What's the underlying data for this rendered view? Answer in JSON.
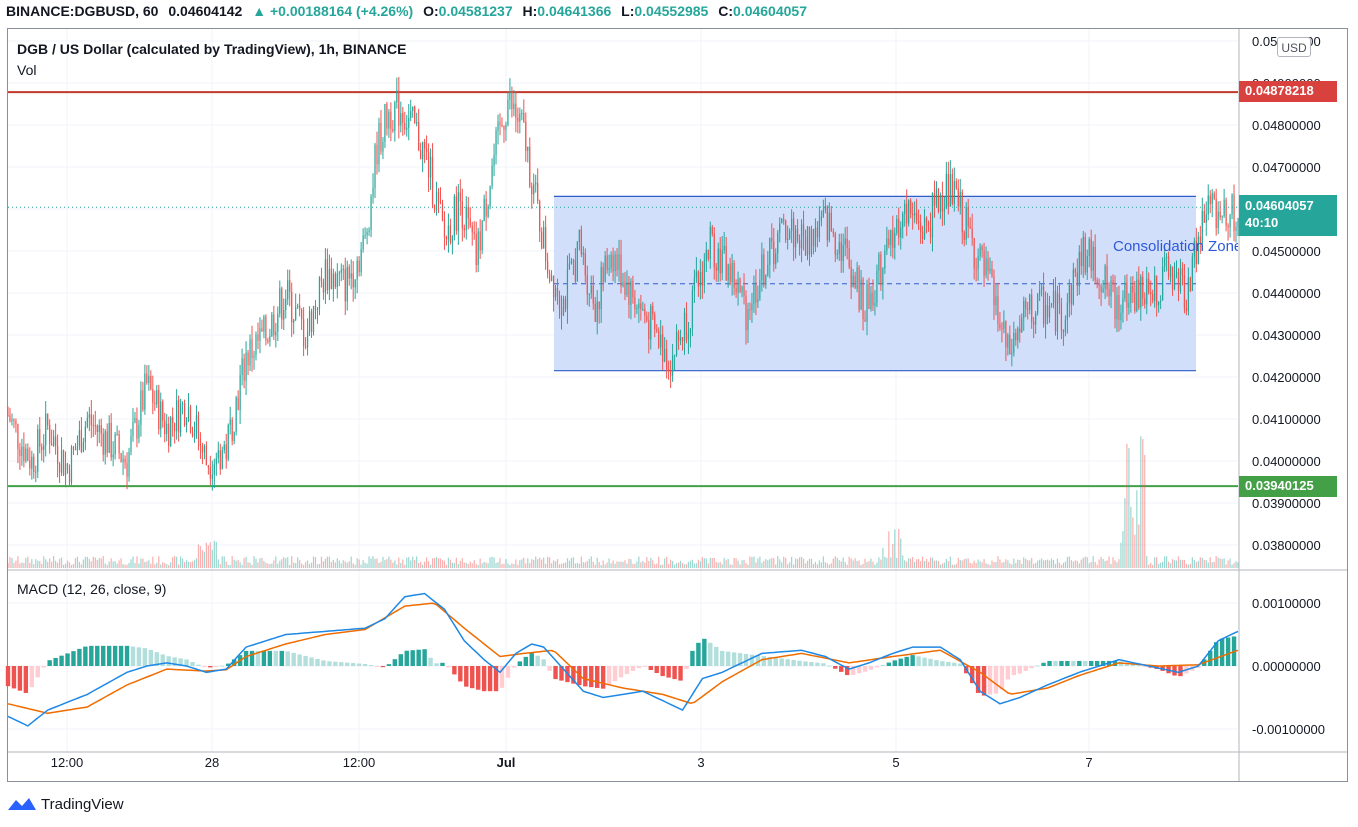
{
  "header": {
    "symbol": "BINANCE:DGBUSD, 60",
    "price": "0.04604142",
    "change": "▲ +0.00188164 (+4.26%)",
    "o_label": "O:",
    "o_value": "0.04581237",
    "h_label": "H:",
    "h_value": "0.04641366",
    "l_label": "L:",
    "l_value": "0.04552985",
    "c_label": "C:",
    "c_value": "0.04604057"
  },
  "legend": {
    "title": "DGB / US Dollar (calculated by TradingView), 1h, BINANCE",
    "vol": "Vol",
    "macd": "MACD (12, 26, close, 9)"
  },
  "currency_button": "USD",
  "price_tags": {
    "resistance": "0.04878218",
    "last_price": "0.04604057",
    "countdown": "40:10",
    "support": "0.03940125"
  },
  "annotation": "Consolidation Zone",
  "footer": {
    "brand": "TradingView"
  },
  "colors": {
    "up": "#26a69a",
    "down": "#ef5350",
    "resistance": "#c0392b",
    "support": "#43a047",
    "zone_fill": "#cddcf9",
    "zone_border": "#2e5fc7",
    "macd_line": "#1e88e5",
    "signal_line": "#ef6c00"
  },
  "chart_data": [
    {
      "type": "candlestick",
      "title": "DGB / US Dollar (calculated by TradingView), 1h, BINANCE",
      "x_ticks": [
        "12:00",
        "28",
        "12:00",
        "Jul",
        "3",
        "5",
        "7"
      ],
      "y_ticks": [
        "0.05000000",
        "0.04900000",
        "0.04800000",
        "0.04700000",
        "0.04600000",
        "0.04500000",
        "0.04400000",
        "0.04300000",
        "0.04200000",
        "0.04100000",
        "0.04000000",
        "0.03900000",
        "0.03800000"
      ],
      "ylim": [
        0.0375,
        0.0503
      ],
      "grid": true,
      "horizontal_lines": [
        {
          "name": "resistance",
          "value": 0.04878218
        },
        {
          "name": "support",
          "value": 0.03940125
        },
        {
          "name": "last_price",
          "value": 0.04604057
        }
      ],
      "rectangle": {
        "label": "Consolidation Zone",
        "low": 0.04215,
        "high": 0.0463,
        "mid": 0.04422,
        "from_x": "Jul 1 ~02:00",
        "to_x": "Jul 8"
      },
      "price_path": [
        [
          0,
          0.0411
        ],
        [
          6,
          0.0405
        ],
        [
          12,
          0.04
        ],
        [
          20,
          0.0408
        ],
        [
          30,
          0.0398
        ],
        [
          40,
          0.041
        ],
        [
          50,
          0.0405
        ],
        [
          60,
          0.04
        ],
        [
          70,
          0.0418
        ],
        [
          80,
          0.0408
        ],
        [
          90,
          0.0414
        ],
        [
          100,
          0.04
        ],
        [
          110,
          0.0403
        ],
        [
          120,
          0.0425
        ],
        [
          130,
          0.043
        ],
        [
          140,
          0.044
        ],
        [
          150,
          0.043
        ],
        [
          160,
          0.0445
        ],
        [
          170,
          0.0442
        ],
        [
          180,
          0.0452
        ],
        [
          186,
          0.0475
        ],
        [
          192,
          0.0483
        ],
        [
          198,
          0.0484
        ],
        [
          206,
          0.0478
        ],
        [
          212,
          0.047
        ],
        [
          220,
          0.0453
        ],
        [
          228,
          0.0462
        ],
        [
          236,
          0.0448
        ],
        [
          244,
          0.047
        ],
        [
          252,
          0.0486
        ],
        [
          260,
          0.0478
        ],
        [
          266,
          0.0462
        ],
        [
          272,
          0.0447
        ],
        [
          280,
          0.0438
        ],
        [
          288,
          0.0451
        ],
        [
          296,
          0.0437
        ],
        [
          304,
          0.045
        ],
        [
          314,
          0.044
        ],
        [
          324,
          0.0432
        ],
        [
          334,
          0.0424
        ],
        [
          344,
          0.0436
        ],
        [
          354,
          0.0452
        ],
        [
          364,
          0.0445
        ],
        [
          372,
          0.0436
        ],
        [
          382,
          0.0447
        ],
        [
          392,
          0.0456
        ],
        [
          402,
          0.0452
        ],
        [
          412,
          0.0457
        ],
        [
          422,
          0.045
        ],
        [
          432,
          0.0436
        ],
        [
          442,
          0.0448
        ],
        [
          452,
          0.046
        ],
        [
          462,
          0.0455
        ],
        [
          472,
          0.0465
        ],
        [
          478,
          0.0462
        ],
        [
          486,
          0.0452
        ],
        [
          496,
          0.044
        ],
        [
          504,
          0.0425
        ],
        [
          512,
          0.0434
        ],
        [
          522,
          0.0437
        ],
        [
          532,
          0.0435
        ],
        [
          542,
          0.045
        ],
        [
          550,
          0.0445
        ],
        [
          558,
          0.0437
        ],
        [
          566,
          0.044
        ],
        [
          576,
          0.044
        ],
        [
          586,
          0.0445
        ],
        [
          594,
          0.044
        ],
        [
          604,
          0.046
        ],
        [
          612,
          0.046
        ],
        [
          620,
          0.0458
        ]
      ],
      "volume_spikes": [
        {
          "x": "Jun 27 ~00:00",
          "relative": 0.45
        },
        {
          "x": "Jul 5 ~03:00",
          "relative": 0.42
        },
        {
          "x": "Jul 7 ~05:00",
          "relative": 1.0
        }
      ]
    },
    {
      "type": "line",
      "title": "MACD (12, 26, close, 9)",
      "y_ticks": [
        "0.00100000",
        "0.00000000",
        "-0.00100000"
      ],
      "ylim": [
        -0.00128,
        0.00128
      ],
      "series": [
        {
          "name": "MACD",
          "values": [
            [
              0,
              -0.0008
            ],
            [
              10,
              -0.00095
            ],
            [
              20,
              -0.0007
            ],
            [
              40,
              -0.00045
            ],
            [
              60,
              -0.0001
            ],
            [
              70,
              0.0
            ],
            [
              80,
              5e-05
            ],
            [
              90,
              0.0
            ],
            [
              100,
              -0.0001
            ],
            [
              110,
              -5e-05
            ],
            [
              120,
              0.0003
            ],
            [
              140,
              0.0005
            ],
            [
              160,
              0.00055
            ],
            [
              180,
              0.0006
            ],
            [
              190,
              0.00075
            ],
            [
              200,
              0.0011
            ],
            [
              210,
              0.00115
            ],
            [
              220,
              0.0009
            ],
            [
              230,
              0.0004
            ],
            [
              240,
              0.0001
            ],
            [
              248,
              -0.0001
            ],
            [
              256,
              0.0002
            ],
            [
              264,
              0.00035
            ],
            [
              270,
              0.0003
            ],
            [
              280,
              -5e-05
            ],
            [
              290,
              -0.0004
            ],
            [
              300,
              -0.0005
            ],
            [
              310,
              -0.00045
            ],
            [
              320,
              -0.0004
            ],
            [
              330,
              -0.00055
            ],
            [
              340,
              -0.0007
            ],
            [
              350,
              -0.0002
            ],
            [
              360,
              -0.0001
            ],
            [
              380,
              0.0002
            ],
            [
              400,
              0.00025
            ],
            [
              412,
              0.00015
            ],
            [
              424,
              -5e-05
            ],
            [
              434,
              5e-05
            ],
            [
              446,
              0.0002
            ],
            [
              456,
              0.0003
            ],
            [
              470,
              0.0003
            ],
            [
              480,
              0.0001
            ],
            [
              490,
              -0.0004
            ],
            [
              500,
              -0.0006
            ],
            [
              510,
              -0.0005
            ],
            [
              524,
              -0.0003
            ],
            [
              540,
              -0.0001
            ],
            [
              560,
              0.0001
            ],
            [
              575,
              0.0
            ],
            [
              590,
              -0.0001
            ],
            [
              600,
              0.0
            ],
            [
              610,
              0.0004
            ],
            [
              620,
              0.00055
            ]
          ]
        },
        {
          "name": "Signal",
          "values": [
            [
              0,
              -0.0006
            ],
            [
              20,
              -0.00075
            ],
            [
              40,
              -0.00065
            ],
            [
              60,
              -0.0003
            ],
            [
              80,
              -5e-05
            ],
            [
              100,
              -8e-05
            ],
            [
              110,
              -6e-05
            ],
            [
              120,
              0.00015
            ],
            [
              140,
              0.00035
            ],
            [
              160,
              0.0005
            ],
            [
              180,
              0.00058
            ],
            [
              200,
              0.00095
            ],
            [
              215,
              0.001
            ],
            [
              230,
              0.0006
            ],
            [
              248,
              0.00015
            ],
            [
              260,
              0.0002
            ],
            [
              275,
              0.00025
            ],
            [
              290,
              -0.0002
            ],
            [
              310,
              -0.00035
            ],
            [
              330,
              -0.00045
            ],
            [
              345,
              -0.0006
            ],
            [
              360,
              -0.00025
            ],
            [
              380,
              0.0001
            ],
            [
              400,
              0.0002
            ],
            [
              424,
              5e-05
            ],
            [
              446,
              0.00015
            ],
            [
              470,
              0.00025
            ],
            [
              490,
              -0.0001
            ],
            [
              505,
              -0.00045
            ],
            [
              524,
              -0.00035
            ],
            [
              540,
              -0.00015
            ],
            [
              560,
              5e-05
            ],
            [
              580,
              0.0
            ],
            [
              600,
              2e-05
            ],
            [
              620,
              0.00025
            ]
          ]
        }
      ]
    }
  ]
}
